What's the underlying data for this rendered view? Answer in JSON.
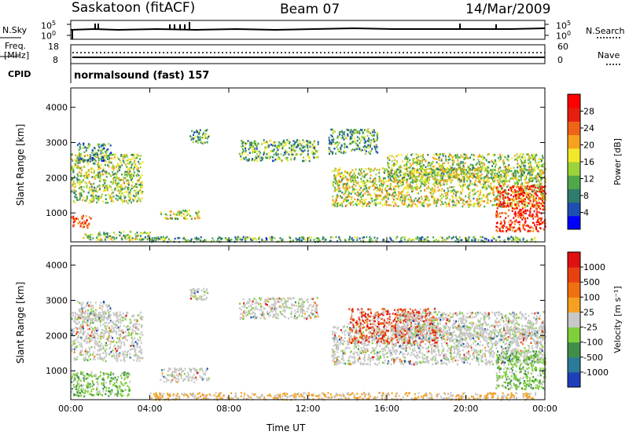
{
  "header": {
    "station": "Saskatoon (fitACF)",
    "beam": "Beam 07",
    "date": "14/Mar/2009"
  },
  "top_panel": {
    "nsky_label": "N.Sky",
    "nsky_ticks": [
      "10^5",
      "10^0"
    ],
    "nsearch_label": "N.Search",
    "nsearch_ticks": [
      "10^5",
      "10^0"
    ],
    "freq_label_line1": "Freq.",
    "freq_label_line2": "[MHz]",
    "freq_ticks": [
      "18",
      "8"
    ],
    "nave_label": "Nave",
    "nave_ticks": [
      "60",
      "0"
    ],
    "cpid_label": "CPID",
    "cpid_value": "normalsound (fast) 157"
  },
  "chart_data": [
    {
      "type": "heatmap",
      "title": "",
      "xlabel": "Time UT",
      "ylabel": "Slant Range [km]",
      "xlim": [
        "00:00",
        "24:00"
      ],
      "ylim": [
        180,
        4550
      ],
      "x_ticks": [
        "00:00",
        "04:00",
        "08:00",
        "12:00",
        "16:00",
        "20:00",
        "00:00"
      ],
      "y_ticks": [
        1000,
        2000,
        3000,
        4000
      ],
      "colorbar": {
        "label": "Power [dB]",
        "ticks": [
          "28",
          "24",
          "20",
          "16",
          "12",
          "8",
          "4"
        ],
        "colors": [
          "#0000ff",
          "#1e4fb0",
          "#2e7d6e",
          "#4fa84a",
          "#9cd23a",
          "#f2e82a",
          "#f5a21e",
          "#f06418",
          "#e81e10",
          "#ff0000"
        ]
      },
      "regions": [
        {
          "t0": 0.0,
          "t1": 3.6,
          "r0": 1300,
          "r1": 2700,
          "level": 0.45
        },
        {
          "t0": 0.0,
          "t1": 1.0,
          "r0": 600,
          "r1": 950,
          "level": 0.85
        },
        {
          "t0": 0.3,
          "t1": 2.0,
          "r0": 2500,
          "r1": 3000,
          "level": 0.25
        },
        {
          "t0": 0.5,
          "t1": 4.0,
          "r0": 250,
          "r1": 500,
          "level": 0.4
        },
        {
          "t0": 4.5,
          "t1": 6.5,
          "r0": 850,
          "r1": 1100,
          "level": 0.5
        },
        {
          "t0": 6.0,
          "t1": 7.0,
          "r0": 3000,
          "r1": 3400,
          "level": 0.3
        },
        {
          "t0": 8.5,
          "t1": 12.5,
          "r0": 2500,
          "r1": 3100,
          "level": 0.35
        },
        {
          "t0": 4.0,
          "t1": 23.5,
          "r0": 200,
          "r1": 350,
          "level": 0.3
        },
        {
          "t0": 13.2,
          "t1": 24.0,
          "r0": 1200,
          "r1": 2300,
          "level": 0.5
        },
        {
          "t0": 16.0,
          "t1": 24.0,
          "r0": 1900,
          "r1": 2700,
          "level": 0.45
        },
        {
          "t0": 21.5,
          "t1": 24.0,
          "r0": 500,
          "r1": 1800,
          "level": 0.9
        },
        {
          "t0": 13.0,
          "t1": 15.5,
          "r0": 2700,
          "r1": 3400,
          "level": 0.3
        }
      ]
    },
    {
      "type": "heatmap",
      "title": "",
      "xlabel": "Time UT",
      "ylabel": "Slant Range [km]",
      "xlim": [
        "00:00",
        "24:00"
      ],
      "ylim": [
        180,
        4550
      ],
      "x_ticks": [
        "00:00",
        "04:00",
        "08:00",
        "12:00",
        "16:00",
        "20:00",
        "00:00"
      ],
      "y_ticks": [
        1000,
        2000,
        3000,
        4000
      ],
      "colorbar": {
        "label": "Velocity [m s^-1]",
        "ticks": [
          "1000",
          "500",
          "100",
          "25",
          "-25",
          "-100",
          "-500",
          "-1000"
        ],
        "colors": [
          "#1f3fb8",
          "#2a7a9a",
          "#3f8f4a",
          "#7fcf3a",
          "#c8c8c8",
          "#f5a020",
          "#f07010",
          "#e84010",
          "#e01010"
        ]
      },
      "regions": [
        {
          "t0": 0.0,
          "t1": 3.6,
          "r0": 1300,
          "r1": 2700,
          "level": 0.5
        },
        {
          "t0": 0.0,
          "t1": 3.0,
          "r0": 300,
          "r1": 1000,
          "level": 0.3
        },
        {
          "t0": 0.3,
          "t1": 2.0,
          "r0": 2500,
          "r1": 3000,
          "level": 0.5
        },
        {
          "t0": 4.5,
          "t1": 7.0,
          "r0": 700,
          "r1": 1100,
          "level": 0.5
        },
        {
          "t0": 6.0,
          "t1": 7.0,
          "r0": 3000,
          "r1": 3400,
          "level": 0.5
        },
        {
          "t0": 8.5,
          "t1": 12.5,
          "r0": 2500,
          "r1": 3100,
          "level": 0.5
        },
        {
          "t0": 4.0,
          "t1": 23.5,
          "r0": 200,
          "r1": 400,
          "level": 0.6
        },
        {
          "t0": 13.2,
          "t1": 24.0,
          "r0": 1200,
          "r1": 2300,
          "level": 0.5
        },
        {
          "t0": 14.0,
          "t1": 18.5,
          "r0": 1800,
          "r1": 2800,
          "level": 0.8
        },
        {
          "t0": 16.5,
          "t1": 24.0,
          "r0": 1900,
          "r1": 2700,
          "level": 0.5
        },
        {
          "t0": 21.5,
          "t1": 24.0,
          "r0": 500,
          "r1": 1600,
          "level": 0.3
        }
      ]
    }
  ]
}
